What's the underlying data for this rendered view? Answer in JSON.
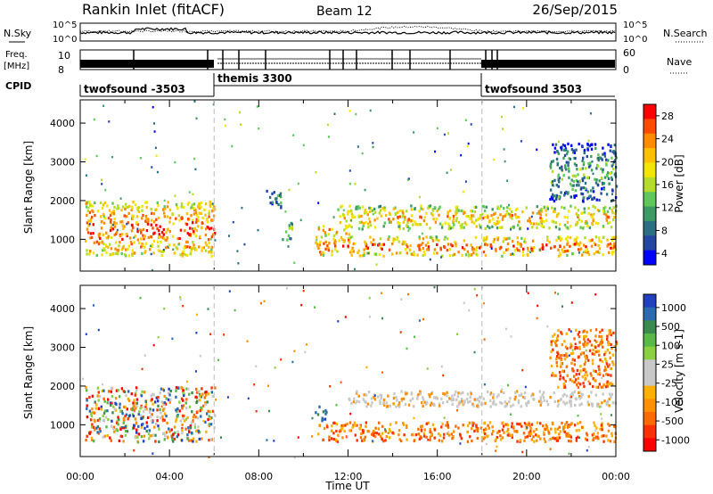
{
  "header": {
    "station": "Rankin Inlet (fitACF)",
    "beam": "Beam 12",
    "date": "26/Sep/2015"
  },
  "status_panels": {
    "nsky_label": "N.Sky",
    "nsearch_label": "N.Search",
    "freq_label_1": "Freq.",
    "freq_label_2": "[MHz]",
    "nave_label": "Nave",
    "cpid_label": "CPID",
    "noise_ticks_left": [
      "10^5",
      "10^0"
    ],
    "noise_ticks_right": [
      "10^5",
      "10^0"
    ],
    "freq_ticks_left": [
      "10",
      "8"
    ],
    "nave_ticks_right": [
      "60",
      "0"
    ],
    "cpid_segments": [
      {
        "label": "twofsound -3503",
        "start_hour": 0,
        "end_hour": 6
      },
      {
        "label": "themis 3300",
        "start_hour": 6,
        "end_hour": 18
      },
      {
        "label": "twofsound 3503",
        "start_hour": 18,
        "end_hour": 24
      }
    ]
  },
  "chart_data": [
    {
      "type": "heatmap",
      "name": "power",
      "ylabel": "Slant Range [km]",
      "xlim": [
        0,
        24
      ],
      "ylim": [
        180,
        4600
      ],
      "yticks": [
        1000,
        2000,
        3000,
        4000
      ],
      "colorbar_label": "Power [dB]",
      "colorbar_ticks": [
        "28",
        "24",
        "20",
        "16",
        "12",
        "8",
        "4"
      ],
      "colorbar_colors": [
        "#ff0000",
        "#ff4a00",
        "#ff8c00",
        "#ffc000",
        "#f2e600",
        "#b4dc28",
        "#5fc85a",
        "#3c9a64",
        "#2d6e82",
        "#2346a0",
        "#0000ff"
      ],
      "regions": [
        {
          "x": [
            0.2,
            6.0
          ],
          "y": [
            600,
            2000
          ],
          "level": 0.8
        },
        {
          "x": [
            8.3,
            9.0
          ],
          "y": [
            1800,
            2300
          ],
          "level": 0.25
        },
        {
          "x": [
            9.0,
            9.5
          ],
          "y": [
            1000,
            1500
          ],
          "level": 0.45
        },
        {
          "x": [
            10.5,
            24.0
          ],
          "y": [
            600,
            1100
          ],
          "level": 0.8
        },
        {
          "x": [
            11.5,
            24.0
          ],
          "y": [
            1300,
            1900
          ],
          "level": 0.65
        },
        {
          "x": [
            10.5,
            12.0
          ],
          "y": [
            1100,
            1400
          ],
          "level": 0.7
        },
        {
          "x": [
            21.0,
            24.0
          ],
          "y": [
            2000,
            3500
          ],
          "level": 0.3
        }
      ]
    },
    {
      "type": "heatmap",
      "name": "velocity",
      "ylabel": "Slant Range [km]",
      "xlabel": "Time UT",
      "xlim": [
        0,
        24
      ],
      "ylim": [
        180,
        4600
      ],
      "yticks": [
        1000,
        2000,
        3000,
        4000
      ],
      "xticks": [
        "00:00",
        "04:00",
        "08:00",
        "12:00",
        "16:00",
        "20:00",
        "00:00"
      ],
      "colorbar_label": "Velocity [m s-1]",
      "colorbar_ticks": [
        "1000",
        "500",
        "100",
        "25",
        "-25",
        "-100",
        "-500",
        "-1000"
      ],
      "colorbar_colors": [
        "#2040c0",
        "#2a6ab0",
        "#3a8a50",
        "#58b848",
        "#8ad040",
        "#c8c8c8",
        "#c8c8c8",
        "#ffb000",
        "#ff9000",
        "#ff6a00",
        "#ff3000",
        "#ff0000"
      ],
      "regions": [
        {
          "x": [
            0.2,
            6.0
          ],
          "y": [
            600,
            2000
          ],
          "v": "mixed"
        },
        {
          "x": [
            10.5,
            11.0
          ],
          "y": [
            1100,
            1500
          ],
          "v": "positive"
        },
        {
          "x": [
            10.5,
            24.0
          ],
          "y": [
            600,
            1100
          ],
          "v": "negative"
        },
        {
          "x": [
            12.0,
            24.0
          ],
          "y": [
            1500,
            1900
          ],
          "v": "near-zero"
        },
        {
          "x": [
            21.0,
            24.0
          ],
          "y": [
            2000,
            3500
          ],
          "v": "negative"
        }
      ]
    }
  ]
}
